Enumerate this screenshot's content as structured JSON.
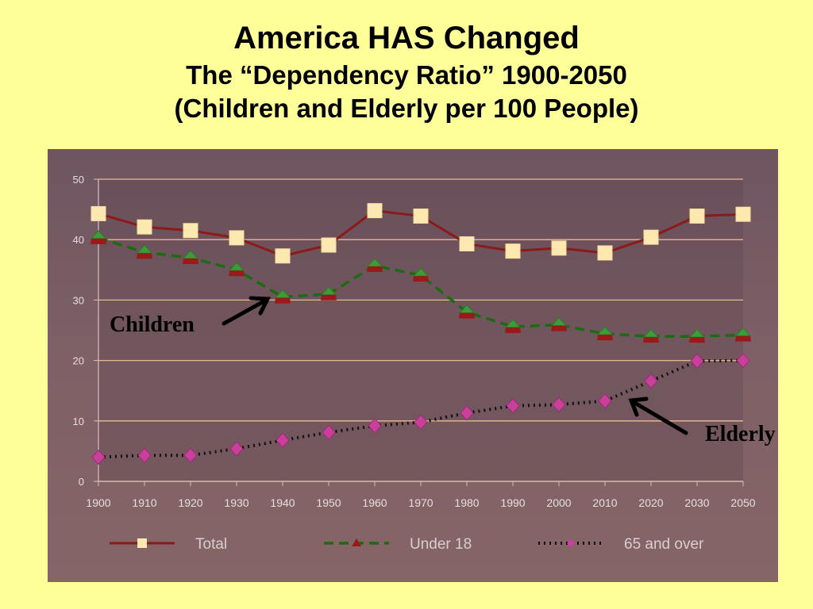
{
  "slide": {
    "title": "America HAS Changed",
    "subtitle": "The “Dependency Ratio” 1900-2050",
    "subtitle2": "(Children and Elderly per 100 People)"
  },
  "annotations": {
    "children_label": "Children",
    "elderly_label": "Elderly"
  },
  "colors": {
    "background": "#ffff99",
    "total": "#8b1a1a",
    "total_marker": "#fde9b0",
    "under18": "#1a6b12",
    "over65": "#111111",
    "over65_marker": "#c8409a"
  },
  "chart_data": {
    "type": "line",
    "title": "",
    "xlabel": "",
    "ylabel": "",
    "x": [
      1900,
      1910,
      1920,
      1930,
      1940,
      1950,
      1960,
      1970,
      1980,
      1990,
      2000,
      2010,
      2020,
      2030,
      2050
    ],
    "x_tick_labels": [
      "1900",
      "1910",
      "1920",
      "1930",
      "1940",
      "1950",
      "1960",
      "1970",
      "1980",
      "1990",
      "2000",
      "2010",
      "2020",
      "2030",
      "2050"
    ],
    "ylim": [
      0,
      50
    ],
    "y_ticks": [
      0,
      10,
      20,
      30,
      40,
      50
    ],
    "y_tick_labels": [
      "0",
      "10",
      "20",
      "30",
      "40",
      "50"
    ],
    "grid": true,
    "legend_position": "bottom",
    "series": [
      {
        "name": "Total",
        "style": "solid",
        "marker": "square",
        "values": [
          44.3,
          42.1,
          41.5,
          40.3,
          37.3,
          39.1,
          44.8,
          43.9,
          39.3,
          38.1,
          38.6,
          37.8,
          40.4,
          43.9,
          44.2
        ]
      },
      {
        "name": "Under 18",
        "style": "dashed",
        "marker": "triangle",
        "values": [
          40.3,
          37.9,
          37.0,
          35.0,
          30.5,
          31.0,
          35.7,
          34.1,
          28.0,
          25.6,
          25.9,
          24.4,
          24.0,
          24.0,
          24.2
        ]
      },
      {
        "name": "65 and over",
        "style": "dotted",
        "marker": "diamond",
        "values": [
          4.0,
          4.3,
          4.3,
          5.4,
          6.8,
          8.1,
          9.2,
          9.8,
          11.3,
          12.5,
          12.7,
          13.3,
          16.6,
          19.9,
          20.0
        ]
      }
    ]
  }
}
